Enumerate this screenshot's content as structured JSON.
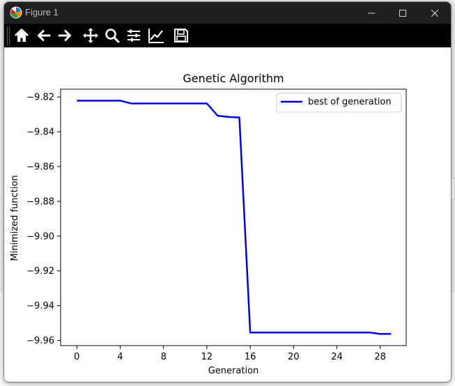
{
  "window": {
    "title": "Figure 1"
  },
  "toolbar": {
    "tools": [
      {
        "name": "home-icon"
      },
      {
        "name": "back-arrow-icon"
      },
      {
        "name": "forward-arrow-icon"
      },
      {
        "name": "pan-move-icon"
      },
      {
        "name": "zoom-magnifier-icon"
      },
      {
        "name": "configure-subplots-icon"
      },
      {
        "name": "edit-axes-icon"
      },
      {
        "name": "save-floppy-icon"
      }
    ]
  },
  "colors": {
    "line": "#0000dd",
    "titlebar": "#202020",
    "toolbar": "#000000"
  },
  "chart_data": {
    "type": "line",
    "title": "Genetic Algorithm",
    "xlabel": "Generation",
    "ylabel": "Minimized function",
    "xlim": [
      -1.5,
      30.4
    ],
    "ylim": [
      -9.963,
      -9.8155
    ],
    "xticks": [
      0,
      4,
      8,
      12,
      16,
      20,
      24,
      28
    ],
    "yticks": [
      -9.82,
      -9.84,
      -9.86,
      -9.88,
      -9.9,
      -9.92,
      -9.94,
      -9.96
    ],
    "ytick_labels": [
      "−9.82",
      "−9.84",
      "−9.86",
      "−9.88",
      "−9.90",
      "−9.92",
      "−9.94",
      "−9.96"
    ],
    "legend": {
      "position": "upper-right"
    },
    "series": [
      {
        "name": "best of generation",
        "x": [
          0,
          1,
          2,
          3,
          4,
          5,
          6,
          7,
          8,
          9,
          10,
          11,
          12,
          13,
          14,
          15,
          16,
          17,
          18,
          19,
          20,
          21,
          22,
          23,
          24,
          25,
          26,
          27,
          28,
          29
        ],
        "values": [
          -9.8221,
          -9.8221,
          -9.8221,
          -9.8221,
          -9.8221,
          -9.8237,
          -9.8237,
          -9.8237,
          -9.8237,
          -9.8237,
          -9.8237,
          -9.8237,
          -9.8237,
          -9.8308,
          -9.8315,
          -9.8318,
          -9.9555,
          -9.9555,
          -9.9555,
          -9.9555,
          -9.9555,
          -9.9555,
          -9.9555,
          -9.9555,
          -9.9555,
          -9.9555,
          -9.9555,
          -9.9555,
          -9.9563,
          -9.9563
        ]
      }
    ]
  }
}
